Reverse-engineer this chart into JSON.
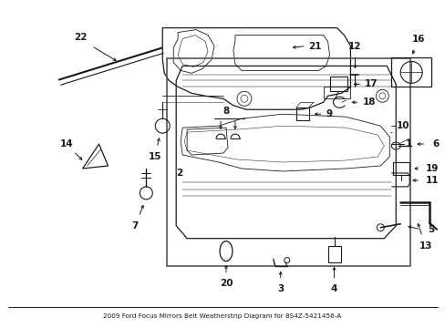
{
  "title": "2009 Ford Focus Mirrors Belt Weatherstrip Diagram for 8S4Z-5421456-A",
  "bg_color": "#ffffff",
  "fig_width": 4.89,
  "fig_height": 3.6,
  "dpi": 100
}
